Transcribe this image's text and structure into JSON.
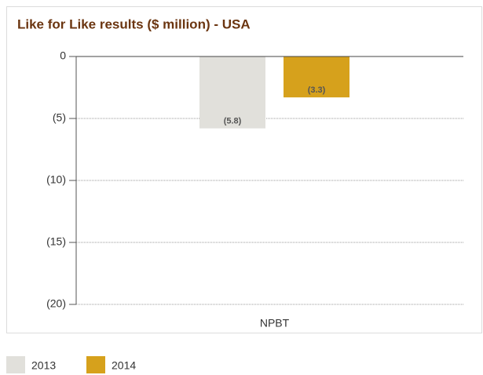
{
  "chart_data": {
    "type": "bar",
    "title": "Like for Like results ($ million) - USA",
    "categories": [
      "NPBT"
    ],
    "series": [
      {
        "name": "2013",
        "color": "#e1e0db",
        "values": [
          -5.8
        ],
        "value_labels": [
          "(5.8)"
        ]
      },
      {
        "name": "2014",
        "color": "#d6a11c",
        "values": [
          -3.3
        ],
        "value_labels": [
          "(3.3)"
        ]
      }
    ],
    "ylim": [
      -20,
      0
    ],
    "yticks": [
      0,
      {
        "value": -5,
        "label": "(5)"
      },
      {
        "value": -10,
        "label": "(10)"
      },
      {
        "value": -15,
        "label": "(15)"
      },
      {
        "value": -20,
        "label": "(20)"
      }
    ],
    "grid": true
  }
}
